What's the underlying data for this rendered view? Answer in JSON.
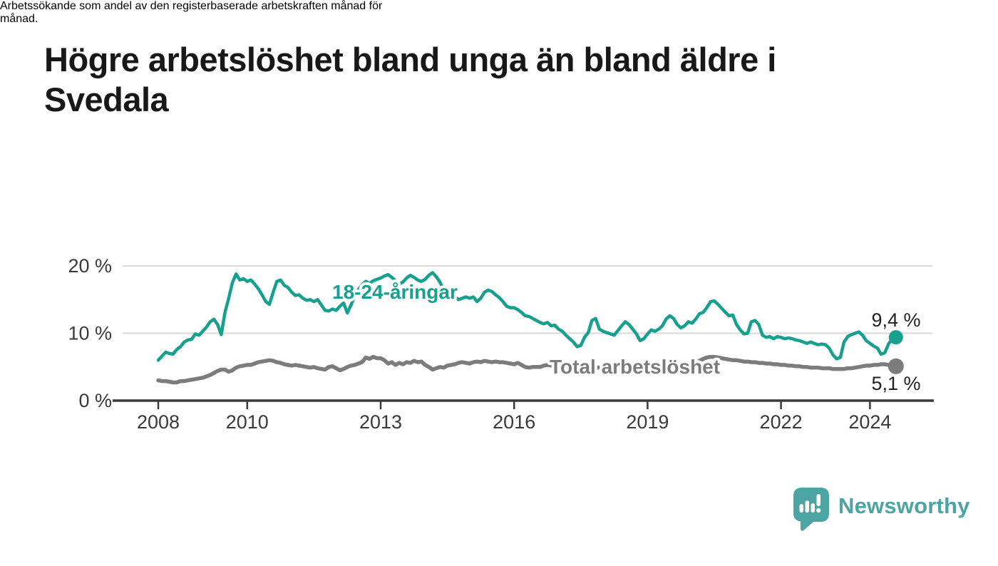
{
  "header": {
    "title_lines": [
      "Högre arbetslöshet bland unga än bland äldre i",
      "Svedala"
    ],
    "subtitle_lines": [
      "Arbetssökande som andel av den registerbaserade arbetskraften månad för",
      "månad."
    ]
  },
  "branding": {
    "logo_text": "Newsworthy",
    "logo_icon": "bar-chart-speech-bubble-icon",
    "brand_color": "#4ca5a2"
  },
  "chart_data": {
    "type": "line",
    "title": "Högre arbetslöshet bland unga än bland äldre i Svedala",
    "subtitle": "Arbetssökande som andel av den registerbaserade arbetskraften månad för månad.",
    "unit": "%",
    "frequency": "monthly",
    "x_start": "2008-01",
    "x_end": "2024-08",
    "xlabel": "",
    "ylabel": "",
    "ylim": [
      0,
      21
    ],
    "grid": "horizontal",
    "x_ticks": [
      2008,
      2010,
      2013,
      2016,
      2019,
      2022,
      2024
    ],
    "y_ticks": [
      {
        "value": 0,
        "label": "0 %"
      },
      {
        "value": 10,
        "label": "10 %"
      },
      {
        "value": 20,
        "label": "20 %"
      }
    ],
    "colors": {
      "grid": "#d9d9d9",
      "axis": "#3a3a3a",
      "end_label_text": "#222222"
    },
    "series": [
      {
        "name": "18-24-åringar",
        "color": "#18a08e",
        "end_value": 9.4,
        "end_label": "9,4 %",
        "values": [
          6.0,
          6.6,
          7.2,
          7.0,
          6.9,
          7.6,
          8.0,
          8.7,
          9.0,
          9.1,
          9.9,
          9.7,
          10.3,
          10.9,
          11.7,
          12.1,
          11.3,
          9.8,
          13.1,
          15.2,
          17.5,
          18.8,
          17.9,
          18.1,
          17.7,
          17.9,
          17.3,
          16.6,
          15.7,
          14.7,
          14.3,
          16.1,
          17.7,
          17.9,
          17.1,
          16.8,
          16.1,
          15.6,
          15.7,
          15.2,
          14.9,
          15.0,
          14.7,
          15.0,
          14.2,
          13.4,
          13.3,
          13.6,
          13.4,
          14.0,
          14.5,
          13.0,
          14.2,
          15.5,
          16.5,
          17.2,
          17.7,
          17.4,
          17.8,
          18.0,
          18.2,
          18.5,
          18.7,
          18.3,
          17.8,
          17.3,
          17.6,
          18.2,
          18.6,
          18.3,
          17.9,
          17.7,
          18.0,
          18.6,
          19.0,
          18.4,
          17.6,
          16.4,
          15.7,
          15.2,
          15.4,
          15.0,
          15.2,
          15.4,
          15.2,
          15.4,
          14.7,
          15.2,
          16.1,
          16.4,
          16.2,
          15.7,
          15.3,
          14.7,
          14.0,
          13.8,
          13.8,
          13.5,
          13.1,
          12.6,
          12.5,
          12.2,
          11.9,
          11.6,
          11.4,
          11.6,
          11.1,
          11.2,
          10.6,
          10.3,
          9.7,
          9.2,
          8.7,
          8.0,
          8.2,
          9.4,
          10.1,
          11.9,
          12.2,
          10.6,
          10.3,
          10.1,
          9.9,
          9.7,
          10.4,
          11.1,
          11.7,
          11.3,
          10.6,
          9.9,
          8.9,
          9.2,
          9.9,
          10.5,
          10.3,
          10.6,
          11.1,
          12.1,
          12.6,
          12.2,
          11.3,
          10.8,
          11.1,
          11.7,
          11.5,
          12.1,
          12.9,
          13.1,
          13.8,
          14.7,
          14.8,
          14.3,
          13.7,
          13.1,
          12.6,
          12.7,
          11.3,
          10.5,
          9.9,
          10.0,
          11.7,
          11.9,
          11.3,
          9.7,
          9.4,
          9.5,
          9.2,
          9.5,
          9.4,
          9.2,
          9.3,
          9.2,
          9.0,
          8.9,
          8.7,
          8.5,
          8.7,
          8.5,
          8.3,
          8.4,
          8.3,
          7.8,
          6.8,
          6.2,
          6.4,
          8.7,
          9.5,
          9.8,
          10.0,
          10.2,
          9.7,
          8.9,
          8.5,
          8.1,
          7.8,
          6.9,
          7.1,
          8.4,
          9.2,
          9.4
        ]
      },
      {
        "name": "Total arbetslöshet",
        "color": "#7c7c7c",
        "end_value": 5.1,
        "end_label": "5,1 %",
        "values": [
          3.0,
          2.9,
          2.9,
          2.8,
          2.7,
          2.7,
          2.9,
          2.9,
          3.0,
          3.1,
          3.2,
          3.3,
          3.4,
          3.6,
          3.8,
          4.1,
          4.4,
          4.6,
          4.6,
          4.3,
          4.5,
          4.9,
          5.1,
          5.2,
          5.3,
          5.3,
          5.5,
          5.7,
          5.8,
          5.9,
          6.0,
          5.9,
          5.7,
          5.6,
          5.4,
          5.3,
          5.2,
          5.3,
          5.2,
          5.1,
          5.0,
          4.9,
          5.0,
          4.8,
          4.7,
          4.6,
          5.0,
          5.1,
          4.8,
          4.5,
          4.7,
          5.0,
          5.2,
          5.3,
          5.5,
          5.7,
          6.4,
          6.2,
          6.5,
          6.3,
          6.3,
          6.0,
          5.5,
          5.7,
          5.3,
          5.6,
          5.4,
          5.7,
          5.6,
          5.9,
          5.7,
          5.8,
          5.3,
          5.0,
          4.6,
          4.8,
          5.0,
          4.9,
          5.2,
          5.3,
          5.4,
          5.6,
          5.7,
          5.6,
          5.5,
          5.7,
          5.8,
          5.7,
          5.9,
          5.8,
          5.7,
          5.8,
          5.7,
          5.7,
          5.6,
          5.5,
          5.4,
          5.6,
          5.3,
          5.0,
          4.9,
          5.0,
          5.0,
          5.0,
          5.2,
          5.3,
          5.2,
          5.1,
          5.1,
          5.0,
          4.9,
          4.9,
          4.8,
          4.8,
          4.9,
          4.9,
          4.8,
          4.8,
          4.9,
          4.9,
          4.8,
          4.7,
          4.7,
          4.6,
          4.6,
          4.6,
          4.7,
          4.7,
          4.6,
          4.6,
          4.7,
          4.8,
          4.8,
          4.8,
          4.8,
          4.9,
          4.9,
          5.0,
          5.1,
          5.0,
          5.0,
          5.1,
          5.2,
          5.3,
          5.5,
          5.6,
          5.9,
          6.2,
          6.4,
          6.5,
          6.5,
          6.4,
          6.3,
          6.2,
          6.1,
          6.0,
          6.0,
          5.9,
          5.8,
          5.8,
          5.7,
          5.7,
          5.6,
          5.6,
          5.5,
          5.5,
          5.4,
          5.4,
          5.3,
          5.3,
          5.2,
          5.2,
          5.1,
          5.1,
          5.0,
          5.0,
          4.9,
          4.9,
          4.9,
          4.8,
          4.8,
          4.8,
          4.7,
          4.7,
          4.7,
          4.7,
          4.8,
          4.8,
          4.9,
          5.0,
          5.1,
          5.2,
          5.2,
          5.3,
          5.3,
          5.4,
          5.4,
          5.3,
          5.2,
          5.1
        ]
      }
    ],
    "legend_position": "inline-labels"
  }
}
